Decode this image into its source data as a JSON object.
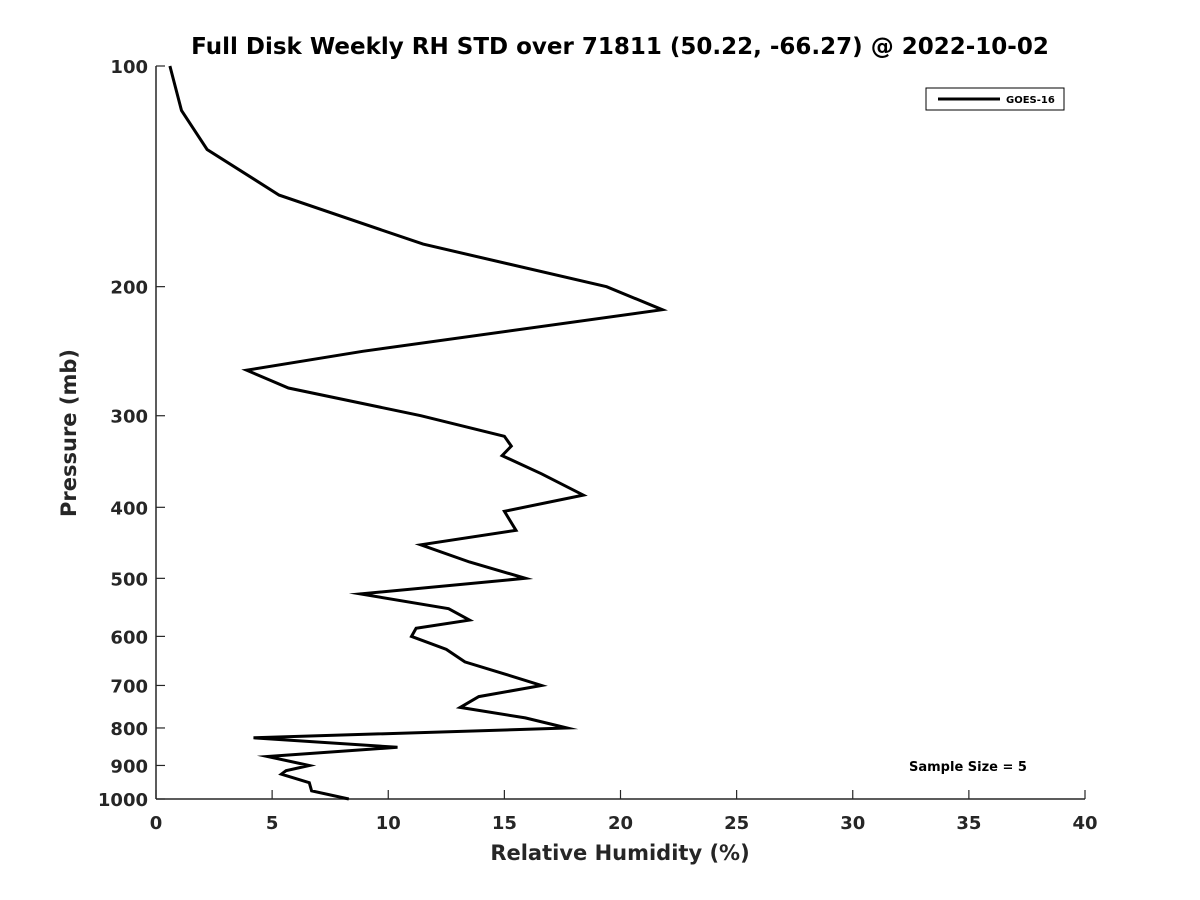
{
  "chart_data": {
    "type": "line",
    "title": "Full Disk Weekly RH STD over 71811 (50.22, -66.27) @ 2022-10-02",
    "xlabel": "Relative Humidity (%)",
    "ylabel": "Pressure (mb)",
    "xlim": [
      0,
      40
    ],
    "ylim": [
      100,
      1000
    ],
    "yscale": "log",
    "y_reversed": true,
    "x_ticks": [
      "0",
      "5",
      "10",
      "15",
      "20",
      "25",
      "30",
      "35",
      "40"
    ],
    "y_ticks": [
      "100",
      "200",
      "300",
      "400",
      "500",
      "600",
      "700",
      "800",
      "900",
      "1000"
    ],
    "grid": false,
    "legend": {
      "position": "top-right",
      "entries": [
        "GOES-16"
      ]
    },
    "annotation": "Sample Size = 5",
    "series": [
      {
        "name": "GOES-16",
        "color": "#000000",
        "x": [
          0.6,
          1.1,
          2.2,
          5.3,
          11.5,
          19.4,
          21.8,
          8.9,
          3.9,
          5.7,
          11.4,
          15.0,
          15.3,
          14.9,
          16.6,
          18.4,
          15.0,
          15.5,
          11.4,
          13.5,
          15.9,
          8.8,
          12.6,
          13.5,
          11.2,
          11.0,
          12.5,
          13.3,
          15.0,
          16.6,
          13.9,
          13.1,
          15.9,
          17.7,
          4.2,
          10.4,
          4.8,
          6.6,
          5.6,
          5.4,
          6.6,
          6.7,
          8.3
        ],
        "y": [
          100,
          115,
          130,
          150,
          175,
          200,
          215,
          245,
          260,
          275,
          300,
          320,
          330,
          340,
          360,
          385,
          405,
          430,
          450,
          475,
          500,
          525,
          550,
          570,
          585,
          600,
          625,
          650,
          675,
          700,
          725,
          750,
          775,
          800,
          825,
          850,
          875,
          900,
          915,
          925,
          950,
          975,
          1000
        ]
      }
    ]
  }
}
